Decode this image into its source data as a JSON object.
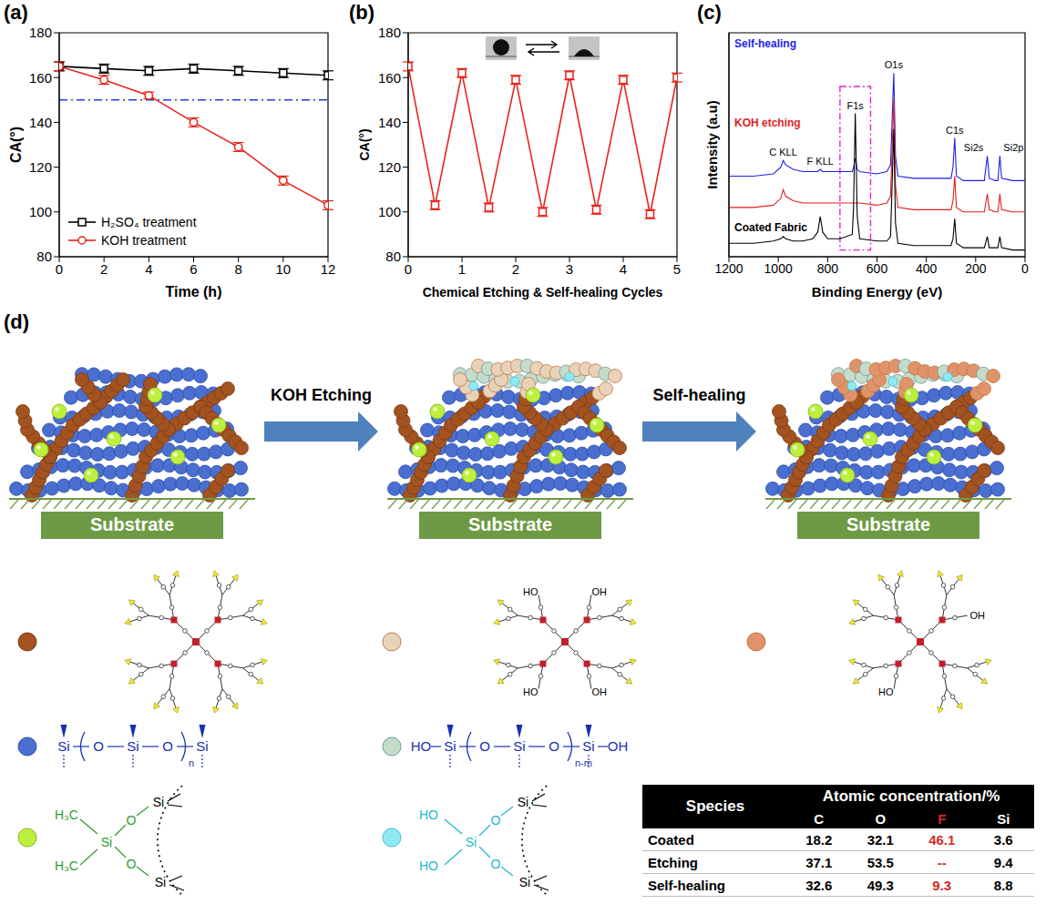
{
  "chart_data": [
    {
      "panel": "(a)",
      "type": "line",
      "x_label": "Time (h)",
      "y_label": "CA(°)",
      "x": [
        0,
        2,
        4,
        6,
        8,
        10,
        12
      ],
      "series": [
        {
          "name": "H₂SO₄ treatment",
          "color": "#000000",
          "marker": "square",
          "values": [
            165,
            164,
            163,
            164,
            163,
            162,
            161
          ],
          "errors": [
            2,
            2,
            2,
            2,
            2,
            2,
            2
          ]
        },
        {
          "name": "KOH treatment",
          "color": "#e8231b",
          "marker": "circle",
          "values": [
            165,
            159,
            152,
            140,
            129,
            114,
            103
          ],
          "errors": [
            2,
            2,
            1.5,
            2,
            2,
            2,
            2
          ]
        }
      ],
      "xlim": [
        0,
        12
      ],
      "ylim": [
        80,
        180
      ],
      "xticks": [
        0,
        2,
        4,
        6,
        8,
        10,
        12
      ],
      "yticks": [
        80,
        100,
        120,
        140,
        160,
        180
      ],
      "threshold": {
        "value": 150,
        "color": "#1f3fd6",
        "line_style": "dashdot"
      },
      "legend": "lower left"
    },
    {
      "panel": "(b)",
      "type": "line",
      "x_label": "Chemical Etching & Self-healing Cycles",
      "y_label": "CA(°)",
      "x": [
        0,
        0.5,
        1,
        1.5,
        2,
        2.5,
        3,
        3.5,
        4,
        4.5,
        5
      ],
      "series": [
        {
          "color": "#e8231b",
          "marker": "square",
          "values": [
            165,
            103,
            162,
            102,
            159,
            100,
            161,
            101,
            159,
            99,
            160
          ],
          "errors": [
            2,
            2,
            2,
            2,
            2,
            2,
            2,
            2,
            2,
            2,
            2
          ]
        }
      ],
      "xlim": [
        0,
        5
      ],
      "ylim": [
        80,
        180
      ],
      "xticks": [
        0,
        1,
        2,
        3,
        4,
        5
      ],
      "yticks": [
        80,
        100,
        120,
        140,
        160,
        180
      ]
    },
    {
      "panel": "(c)",
      "type": "line",
      "x_label": "Binding Energy (eV)",
      "y_label": "Intensity (a.u)",
      "x": [
        1200,
        1100,
        1020,
        990,
        980,
        970,
        940,
        900,
        860,
        840,
        830,
        820,
        800,
        750,
        700,
        695,
        688,
        680,
        670,
        600,
        560,
        545,
        532,
        525,
        515,
        450,
        350,
        300,
        292,
        285,
        278,
        250,
        200,
        165,
        153,
        145,
        120,
        110,
        102,
        95,
        50,
        0
      ],
      "series": [
        {
          "name": "Self-healing",
          "color": "#1f1fe6",
          "values": [
            36,
            36,
            37,
            40,
            43,
            41,
            39,
            38,
            38,
            38,
            39,
            38,
            38,
            38,
            38,
            40,
            44,
            39,
            38,
            37,
            38,
            41,
            82,
            45,
            36,
            35,
            35,
            35,
            40,
            53,
            36,
            34,
            34,
            34,
            45,
            35,
            34,
            34,
            45,
            35,
            34,
            34
          ]
        },
        {
          "name": "KOH etching",
          "color": "#e01f1f",
          "values": [
            22,
            22,
            23,
            26,
            30,
            27,
            25,
            24,
            24,
            24,
            24,
            24,
            24,
            24,
            24,
            24,
            24,
            24,
            24,
            23,
            24,
            27,
            70,
            32,
            22,
            21,
            21,
            21,
            25,
            36,
            22,
            20,
            20,
            20,
            28,
            21,
            20,
            20,
            28,
            21,
            20,
            20
          ]
        },
        {
          "name": "Coated Fabric",
          "color": "#000000",
          "values": [
            6,
            6,
            7,
            8,
            9,
            8,
            7,
            7,
            8,
            11,
            18,
            11,
            8,
            8,
            10,
            22,
            64,
            18,
            8,
            7,
            7,
            9,
            57,
            15,
            6,
            5,
            5,
            5,
            8,
            17,
            6,
            4,
            4,
            4,
            9,
            4,
            4,
            4,
            9,
            4,
            3,
            3
          ]
        }
      ],
      "xlim": [
        1200,
        0
      ],
      "ylim": [
        0,
        100
      ],
      "xticks": [
        1200,
        1000,
        800,
        600,
        400,
        200,
        0
      ],
      "tick_labels": "x",
      "annotations": [
        {
          "text": "C KLL",
          "x": 980
        },
        {
          "text": "F KLL",
          "x": 830
        },
        {
          "text": "F1s",
          "x": 688
        },
        {
          "text": "O1s",
          "x": 532
        },
        {
          "text": "C1s",
          "x": 285
        },
        {
          "text": "Si2s",
          "x": 153
        },
        {
          "text": "Si2p",
          "x": 102
        }
      ]
    }
  ],
  "diagram": {
    "panel": "(d)",
    "arrows": [
      "KOH Etching",
      "Self-healing"
    ],
    "substrate": "Substrate",
    "molecules": {
      "pdms": {
        "atoms": [
          "Si",
          "O",
          "Si",
          "O",
          "Si"
        ],
        "repeat": "n"
      },
      "pdms_etched": {
        "end_groups": [
          "HO",
          "OH"
        ],
        "atoms": [
          "Si",
          "O",
          "Si",
          "O",
          "Si"
        ],
        "repeat": "n-m"
      },
      "silica": {
        "groups": [
          "H₃C",
          "H₃C"
        ],
        "atoms": [
          "Si",
          "O",
          "O",
          "Si",
          "Si"
        ]
      },
      "silica_etched": {
        "groups": [
          "HO",
          "HO"
        ],
        "atoms": [
          "Si",
          "O",
          "O",
          "Si",
          "Si"
        ]
      },
      "dendrimer_etched": {
        "groups": [
          "OH",
          "HO",
          "HO",
          "OH"
        ]
      },
      "dendrimer_healed": {
        "groups": [
          "HO",
          "OH"
        ]
      }
    }
  },
  "table": {
    "header": "Species",
    "group_header": "Atomic concentration/%",
    "columns": [
      "C",
      "O",
      "F",
      "Si"
    ],
    "colors": [
      "#000000",
      "#000000",
      "#d42a2a",
      "#000000"
    ],
    "rows": [
      {
        "label": "Coated",
        "values": [
          "18.2",
          "32.1",
          "46.1",
          "3.6"
        ]
      },
      {
        "label": "Etching",
        "values": [
          "37.1",
          "53.5",
          "--",
          "9.4"
        ]
      },
      {
        "label": "Self-healing",
        "values": [
          "32.6",
          "49.3",
          "9.3",
          "8.8"
        ]
      }
    ]
  }
}
